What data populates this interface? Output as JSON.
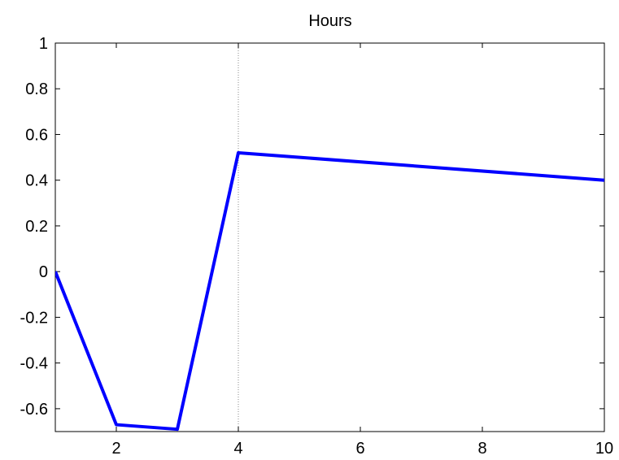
{
  "chart_data": {
    "type": "line",
    "title": "Hours",
    "xlabel": "",
    "ylabel": "",
    "xlim": [
      1,
      10
    ],
    "ylim": [
      -0.7,
      1
    ],
    "x_ticks": [
      2,
      4,
      6,
      8,
      10
    ],
    "x_tick_labels": [
      "2",
      "4",
      "6",
      "8",
      "10"
    ],
    "y_ticks": [
      1,
      0.8,
      0.6,
      0.4,
      0.2,
      0,
      -0.2,
      -0.4,
      -0.6
    ],
    "y_tick_labels": [
      "1",
      "0.8",
      "0.6",
      "0.4",
      "0.2",
      "0",
      "-0.2",
      "-0.4",
      "-0.6"
    ],
    "grid": false,
    "vertical_reference_line": {
      "x": 4,
      "style": "dotted"
    },
    "series": [
      {
        "x": [
          1,
          2,
          3,
          4,
          10
        ],
        "values": [
          0,
          -0.67,
          -0.69,
          0.52,
          0.4
        ],
        "color": "#0000ff"
      }
    ]
  }
}
